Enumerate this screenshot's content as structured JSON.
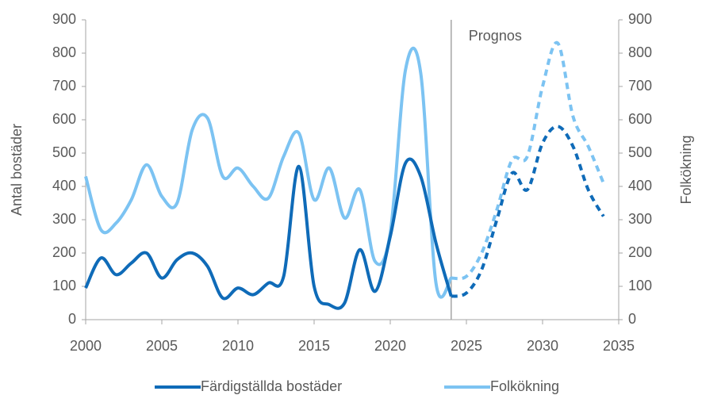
{
  "chart_data": {
    "type": "line",
    "x": [
      2000,
      2001,
      2002,
      2003,
      2004,
      2005,
      2006,
      2007,
      2008,
      2009,
      2010,
      2011,
      2012,
      2013,
      2014,
      2015,
      2016,
      2017,
      2018,
      2019,
      2020,
      2021,
      2022,
      2023,
      2024,
      2025,
      2026,
      2027,
      2028,
      2029,
      2030,
      2031,
      2032,
      2033,
      2034
    ],
    "series": [
      {
        "name": "Färdigställda bostäder",
        "color": "#0f6bb8",
        "values": [
          95,
          185,
          135,
          170,
          200,
          125,
          180,
          200,
          160,
          65,
          95,
          75,
          110,
          130,
          460,
          100,
          45,
          50,
          210,
          85,
          250,
          470,
          430,
          230,
          70,
          80,
          150,
          300,
          440,
          390,
          530,
          580,
          520,
          390,
          310
        ]
      },
      {
        "name": "Folkökning",
        "color": "#7cc3f2",
        "axis": "y2",
        "values": [
          430,
          270,
          290,
          360,
          465,
          370,
          350,
          570,
          605,
          430,
          455,
          400,
          365,
          490,
          560,
          360,
          455,
          305,
          390,
          175,
          260,
          750,
          740,
          110,
          125,
          130,
          200,
          330,
          480,
          490,
          700,
          830,
          610,
          520,
          410
        ]
      }
    ],
    "ylabel": "Antal bostäder",
    "y2label": "Folkökning",
    "xlim": [
      2000,
      2035
    ],
    "xticks": [
      2000,
      2005,
      2010,
      2015,
      2020,
      2025,
      2030,
      2035
    ],
    "ylim": [
      0,
      900
    ],
    "yticks": [
      0,
      100,
      200,
      300,
      400,
      500,
      600,
      700,
      800,
      900
    ],
    "y2lim": [
      0,
      900
    ],
    "y2ticks": [
      0,
      100,
      200,
      300,
      400,
      500,
      600,
      700,
      800,
      900
    ],
    "annotations": [
      {
        "text": "Prognos",
        "x": 2024
      }
    ],
    "legend": "bottom"
  }
}
